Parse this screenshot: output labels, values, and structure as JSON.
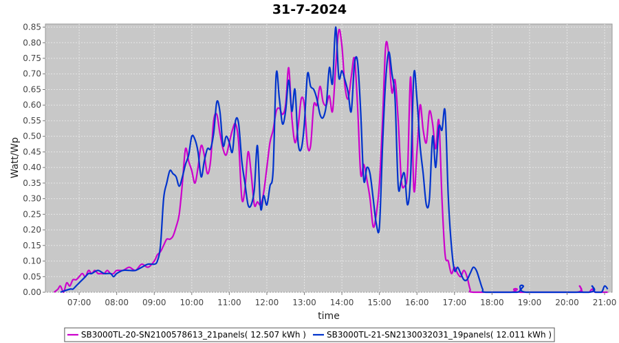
{
  "chart_data": {
    "type": "line",
    "title": "31-7-2024",
    "xlabel": "time",
    "ylabel": "Watt/Wp",
    "xlim": [
      "06:06",
      "21:12"
    ],
    "ylim": [
      0,
      0.86
    ],
    "x_ticks": [
      "07:00",
      "08:00",
      "09:00",
      "10:00",
      "11:00",
      "12:00",
      "13:00",
      "14:00",
      "15:00",
      "16:00",
      "17:00",
      "18:00",
      "19:00",
      "20:00",
      "21:00"
    ],
    "y_ticks": [
      "0.00",
      "0.05",
      "0.10",
      "0.15",
      "0.20",
      "0.25",
      "0.30",
      "0.35",
      "0.40",
      "0.45",
      "0.50",
      "0.55",
      "0.60",
      "0.65",
      "0.70",
      "0.75",
      "0.80",
      "0.85"
    ],
    "grid": true,
    "legend": "bottom",
    "colors": {
      "plot_bg": "#c8c8c8",
      "grid": "#e6e6e6"
    },
    "series": [
      {
        "name": "SB3000TL-20-SN2100578613_21panels( 12.507 kWh )",
        "color": "#cc00cc",
        "points": [
          [
            "06:20",
            0.0
          ],
          [
            "06:26",
            0.01
          ],
          [
            "06:30",
            0.02
          ],
          [
            "06:35",
            0.0
          ],
          [
            "06:40",
            0.03
          ],
          [
            "06:45",
            0.02
          ],
          [
            "06:50",
            0.04
          ],
          [
            "06:55",
            0.04
          ],
          [
            "07:00",
            0.05
          ],
          [
            "07:05",
            0.06
          ],
          [
            "07:10",
            0.05
          ],
          [
            "07:15",
            0.07
          ],
          [
            "07:20",
            0.06
          ],
          [
            "07:25",
            0.07
          ],
          [
            "07:30",
            0.06
          ],
          [
            "07:35",
            0.06
          ],
          [
            "07:40",
            0.06
          ],
          [
            "07:45",
            0.07
          ],
          [
            "07:50",
            0.06
          ],
          [
            "07:55",
            0.06
          ],
          [
            "08:00",
            0.07
          ],
          [
            "08:10",
            0.07
          ],
          [
            "08:20",
            0.08
          ],
          [
            "08:30",
            0.07
          ],
          [
            "08:40",
            0.09
          ],
          [
            "08:50",
            0.08
          ],
          [
            "09:00",
            0.1
          ],
          [
            "09:05",
            0.12
          ],
          [
            "09:10",
            0.13
          ],
          [
            "09:15",
            0.15
          ],
          [
            "09:20",
            0.17
          ],
          [
            "09:25",
            0.17
          ],
          [
            "09:30",
            0.18
          ],
          [
            "09:35",
            0.21
          ],
          [
            "09:40",
            0.25
          ],
          [
            "09:45",
            0.35
          ],
          [
            "09:50",
            0.46
          ],
          [
            "09:55",
            0.42
          ],
          [
            "10:00",
            0.39
          ],
          [
            "10:05",
            0.35
          ],
          [
            "10:10",
            0.4
          ],
          [
            "10:15",
            0.47
          ],
          [
            "10:20",
            0.44
          ],
          [
            "10:25",
            0.38
          ],
          [
            "10:30",
            0.42
          ],
          [
            "10:35",
            0.55
          ],
          [
            "10:40",
            0.57
          ],
          [
            "10:45",
            0.51
          ],
          [
            "10:50",
            0.46
          ],
          [
            "10:55",
            0.44
          ],
          [
            "11:00",
            0.48
          ],
          [
            "11:05",
            0.52
          ],
          [
            "11:10",
            0.54
          ],
          [
            "11:15",
            0.48
          ],
          [
            "11:20",
            0.3
          ],
          [
            "11:25",
            0.33
          ],
          [
            "11:30",
            0.45
          ],
          [
            "11:35",
            0.38
          ],
          [
            "11:40",
            0.28
          ],
          [
            "11:45",
            0.29
          ],
          [
            "11:50",
            0.28
          ],
          [
            "11:55",
            0.32
          ],
          [
            "12:00",
            0.4
          ],
          [
            "12:05",
            0.48
          ],
          [
            "12:10",
            0.52
          ],
          [
            "12:15",
            0.58
          ],
          [
            "12:20",
            0.59
          ],
          [
            "12:25",
            0.57
          ],
          [
            "12:30",
            0.6
          ],
          [
            "12:35",
            0.72
          ],
          [
            "12:40",
            0.56
          ],
          [
            "12:45",
            0.48
          ],
          [
            "12:50",
            0.53
          ],
          [
            "12:55",
            0.62
          ],
          [
            "13:00",
            0.6
          ],
          [
            "13:05",
            0.47
          ],
          [
            "13:10",
            0.47
          ],
          [
            "13:15",
            0.6
          ],
          [
            "13:20",
            0.6
          ],
          [
            "13:25",
            0.66
          ],
          [
            "13:30",
            0.61
          ],
          [
            "13:35",
            0.6
          ],
          [
            "13:40",
            0.63
          ],
          [
            "13:45",
            0.58
          ],
          [
            "13:50",
            0.72
          ],
          [
            "13:55",
            0.84
          ],
          [
            "14:00",
            0.79
          ],
          [
            "14:05",
            0.66
          ],
          [
            "14:10",
            0.62
          ],
          [
            "14:15",
            0.69
          ],
          [
            "14:20",
            0.75
          ],
          [
            "14:25",
            0.6
          ],
          [
            "14:30",
            0.38
          ],
          [
            "14:35",
            0.41
          ],
          [
            "14:40",
            0.36
          ],
          [
            "14:45",
            0.3
          ],
          [
            "14:50",
            0.21
          ],
          [
            "14:55",
            0.25
          ],
          [
            "15:00",
            0.35
          ],
          [
            "15:05",
            0.55
          ],
          [
            "15:10",
            0.79
          ],
          [
            "15:15",
            0.76
          ],
          [
            "15:20",
            0.64
          ],
          [
            "15:25",
            0.68
          ],
          [
            "15:30",
            0.55
          ],
          [
            "15:35",
            0.36
          ],
          [
            "15:40",
            0.34
          ],
          [
            "15:45",
            0.39
          ],
          [
            "15:50",
            0.69
          ],
          [
            "15:55",
            0.33
          ],
          [
            "16:00",
            0.45
          ],
          [
            "16:05",
            0.6
          ],
          [
            "16:10",
            0.52
          ],
          [
            "16:15",
            0.48
          ],
          [
            "16:20",
            0.58
          ],
          [
            "16:25",
            0.54
          ],
          [
            "16:30",
            0.46
          ],
          [
            "16:35",
            0.55
          ],
          [
            "16:40",
            0.3
          ],
          [
            "16:45",
            0.12
          ],
          [
            "16:50",
            0.1
          ],
          [
            "16:55",
            0.06
          ],
          [
            "17:00",
            0.08
          ],
          [
            "17:05",
            0.06
          ],
          [
            "17:10",
            0.05
          ],
          [
            "17:15",
            0.07
          ],
          [
            "17:20",
            0.05
          ],
          [
            "17:25",
            0.01
          ],
          [
            "17:30",
            0.0
          ],
          [
            "18:30",
            0.0
          ],
          [
            "18:35",
            0.01
          ],
          [
            "18:40",
            0.01
          ],
          [
            "18:45",
            0.0
          ],
          [
            "20:15",
            0.0
          ],
          [
            "20:20",
            0.02
          ],
          [
            "20:25",
            0.0
          ],
          [
            "20:35",
            0.0
          ],
          [
            "20:40",
            0.01
          ],
          [
            "20:45",
            0.0
          ],
          [
            "21:05",
            0.0
          ]
        ]
      },
      {
        "name": "SB3000TL-21-SN2130032031_19panels( 12.011 kWh )",
        "color": "#0033cc",
        "points": [
          [
            "06:30",
            0.0
          ],
          [
            "06:45",
            0.01
          ],
          [
            "06:50",
            0.01
          ],
          [
            "06:55",
            0.02
          ],
          [
            "07:00",
            0.03
          ],
          [
            "07:05",
            0.04
          ],
          [
            "07:10",
            0.05
          ],
          [
            "07:15",
            0.06
          ],
          [
            "07:20",
            0.06
          ],
          [
            "07:30",
            0.07
          ],
          [
            "07:40",
            0.06
          ],
          [
            "07:50",
            0.06
          ],
          [
            "07:55",
            0.05
          ],
          [
            "08:00",
            0.06
          ],
          [
            "08:10",
            0.07
          ],
          [
            "08:20",
            0.07
          ],
          [
            "08:30",
            0.07
          ],
          [
            "08:40",
            0.08
          ],
          [
            "08:50",
            0.09
          ],
          [
            "09:00",
            0.09
          ],
          [
            "09:05",
            0.1
          ],
          [
            "09:10",
            0.15
          ],
          [
            "09:15",
            0.3
          ],
          [
            "09:20",
            0.35
          ],
          [
            "09:25",
            0.39
          ],
          [
            "09:30",
            0.38
          ],
          [
            "09:35",
            0.37
          ],
          [
            "09:40",
            0.34
          ],
          [
            "09:45",
            0.37
          ],
          [
            "09:50",
            0.41
          ],
          [
            "09:55",
            0.44
          ],
          [
            "10:00",
            0.5
          ],
          [
            "10:05",
            0.49
          ],
          [
            "10:10",
            0.45
          ],
          [
            "10:15",
            0.37
          ],
          [
            "10:20",
            0.42
          ],
          [
            "10:25",
            0.46
          ],
          [
            "10:30",
            0.46
          ],
          [
            "10:35",
            0.51
          ],
          [
            "10:40",
            0.61
          ],
          [
            "10:45",
            0.58
          ],
          [
            "10:50",
            0.47
          ],
          [
            "10:55",
            0.5
          ],
          [
            "11:00",
            0.48
          ],
          [
            "11:05",
            0.45
          ],
          [
            "11:10",
            0.55
          ],
          [
            "11:15",
            0.54
          ],
          [
            "11:20",
            0.42
          ],
          [
            "11:25",
            0.35
          ],
          [
            "11:30",
            0.28
          ],
          [
            "11:35",
            0.28
          ],
          [
            "11:40",
            0.33
          ],
          [
            "11:45",
            0.47
          ],
          [
            "11:50",
            0.27
          ],
          [
            "11:55",
            0.31
          ],
          [
            "12:00",
            0.28
          ],
          [
            "12:05",
            0.34
          ],
          [
            "12:10",
            0.39
          ],
          [
            "12:15",
            0.7
          ],
          [
            "12:20",
            0.62
          ],
          [
            "12:25",
            0.54
          ],
          [
            "12:30",
            0.58
          ],
          [
            "12:35",
            0.68
          ],
          [
            "12:40",
            0.58
          ],
          [
            "12:45",
            0.65
          ],
          [
            "12:50",
            0.48
          ],
          [
            "12:55",
            0.46
          ],
          [
            "13:00",
            0.54
          ],
          [
            "13:05",
            0.7
          ],
          [
            "13:10",
            0.66
          ],
          [
            "13:15",
            0.65
          ],
          [
            "13:20",
            0.62
          ],
          [
            "13:25",
            0.57
          ],
          [
            "13:30",
            0.56
          ],
          [
            "13:35",
            0.6
          ],
          [
            "13:40",
            0.72
          ],
          [
            "13:45",
            0.67
          ],
          [
            "13:50",
            0.85
          ],
          [
            "13:55",
            0.69
          ],
          [
            "14:00",
            0.71
          ],
          [
            "14:05",
            0.68
          ],
          [
            "14:10",
            0.64
          ],
          [
            "14:15",
            0.58
          ],
          [
            "14:20",
            0.73
          ],
          [
            "14:25",
            0.74
          ],
          [
            "14:30",
            0.58
          ],
          [
            "14:35",
            0.36
          ],
          [
            "14:40",
            0.4
          ],
          [
            "14:45",
            0.38
          ],
          [
            "14:50",
            0.3
          ],
          [
            "14:55",
            0.22
          ],
          [
            "15:00",
            0.21
          ],
          [
            "15:05",
            0.47
          ],
          [
            "15:10",
            0.68
          ],
          [
            "15:15",
            0.77
          ],
          [
            "15:20",
            0.7
          ],
          [
            "15:25",
            0.62
          ],
          [
            "15:30",
            0.34
          ],
          [
            "15:35",
            0.36
          ],
          [
            "15:40",
            0.38
          ],
          [
            "15:45",
            0.28
          ],
          [
            "15:50",
            0.38
          ],
          [
            "15:55",
            0.7
          ],
          [
            "16:00",
            0.62
          ],
          [
            "16:05",
            0.47
          ],
          [
            "16:10",
            0.38
          ],
          [
            "16:15",
            0.28
          ],
          [
            "16:20",
            0.3
          ],
          [
            "16:25",
            0.5
          ],
          [
            "16:30",
            0.4
          ],
          [
            "16:35",
            0.53
          ],
          [
            "16:40",
            0.52
          ],
          [
            "16:45",
            0.58
          ],
          [
            "16:50",
            0.31
          ],
          [
            "16:55",
            0.15
          ],
          [
            "17:00",
            0.07
          ],
          [
            "17:05",
            0.08
          ],
          [
            "17:10",
            0.06
          ],
          [
            "17:15",
            0.04
          ],
          [
            "17:20",
            0.04
          ],
          [
            "17:25",
            0.06
          ],
          [
            "17:30",
            0.08
          ],
          [
            "17:35",
            0.07
          ],
          [
            "17:40",
            0.04
          ],
          [
            "17:45",
            0.01
          ],
          [
            "17:50",
            0.0
          ],
          [
            "18:40",
            0.0
          ],
          [
            "18:45",
            0.02
          ],
          [
            "18:50",
            0.02
          ],
          [
            "18:55",
            0.0
          ],
          [
            "20:35",
            0.0
          ],
          [
            "20:40",
            0.02
          ],
          [
            "20:45",
            0.0
          ],
          [
            "20:55",
            0.0
          ],
          [
            "21:00",
            0.02
          ],
          [
            "21:05",
            0.01
          ]
        ]
      }
    ]
  }
}
